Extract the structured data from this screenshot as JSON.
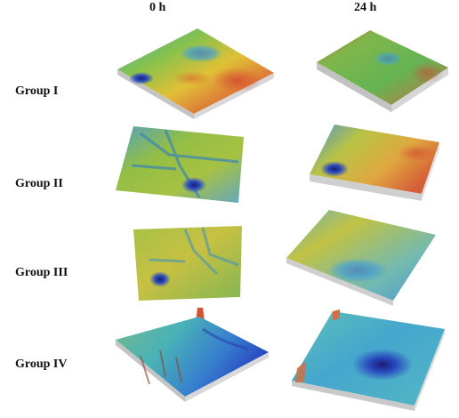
{
  "figure": {
    "columns": [
      "0 h",
      "24 h"
    ],
    "rows": [
      "Group I",
      "Group II",
      "Group III",
      "Group IV"
    ]
  },
  "panels": [
    {
      "group": "Group I",
      "time": "0 h",
      "surface": "3d-surface-map"
    },
    {
      "group": "Group I",
      "time": "24 h",
      "surface": "3d-surface-map"
    },
    {
      "group": "Group II",
      "time": "0 h",
      "surface": "3d-surface-map"
    },
    {
      "group": "Group II",
      "time": "24 h",
      "surface": "3d-surface-map"
    },
    {
      "group": "Group III",
      "time": "0 h",
      "surface": "3d-surface-map"
    },
    {
      "group": "Group III",
      "time": "24 h",
      "surface": "3d-surface-map"
    },
    {
      "group": "Group IV",
      "time": "0 h",
      "surface": "3d-surface-map"
    },
    {
      "group": "Group IV",
      "time": "24 h",
      "surface": "3d-surface-map"
    }
  ]
}
